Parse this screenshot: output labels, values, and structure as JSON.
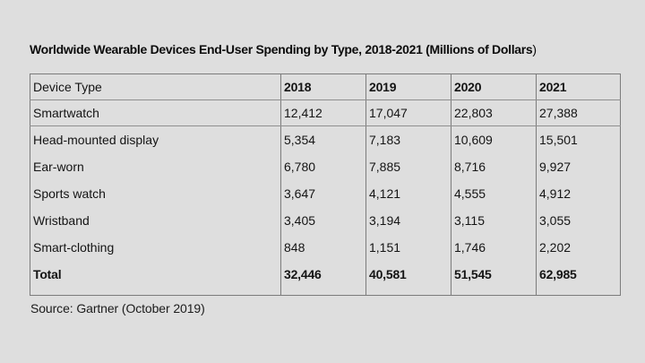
{
  "title": {
    "bold_part": "Worldwide Wearable Devices End-User Spending by Type, 2018-2021 (Millions of Dollars",
    "closing_paren": ")"
  },
  "source": "Source: Gartner (October 2019)",
  "colors": {
    "background": "#dedede",
    "border": "#7c7c7c",
    "text": "#141414"
  },
  "chart_data": {
    "type": "table",
    "title": "Worldwide Wearable Devices End-User Spending by Type, 2018-2021 (Millions of Dollars)",
    "columns": [
      "Device Type",
      "2018",
      "2019",
      "2020",
      "2021"
    ],
    "rows": [
      {
        "device_type": "Smartwatch",
        "values": [
          "12,412",
          "17,047",
          "22,803",
          "27,388"
        ]
      },
      {
        "device_type": "Head-mounted display",
        "values": [
          "5,354",
          "7,183",
          "10,609",
          "15,501"
        ]
      },
      {
        "device_type": "Ear-worn",
        "values": [
          "6,780",
          "7,885",
          "8,716",
          "9,927"
        ]
      },
      {
        "device_type": "Sports watch",
        "values": [
          "3,647",
          "4,121",
          "4,555",
          "4,912"
        ]
      },
      {
        "device_type": "Wristband",
        "values": [
          "3,405",
          "3,194",
          "3,115",
          "3,055"
        ]
      },
      {
        "device_type": "Smart-clothing",
        "values": [
          "848",
          "1,151",
          "1,746",
          "2,202"
        ]
      },
      {
        "device_type": "Total",
        "values": [
          "32,446",
          "40,581",
          "51,545",
          "62,985"
        ],
        "emphasis": "bold"
      }
    ],
    "source": "Source: Gartner (October 2019)"
  }
}
